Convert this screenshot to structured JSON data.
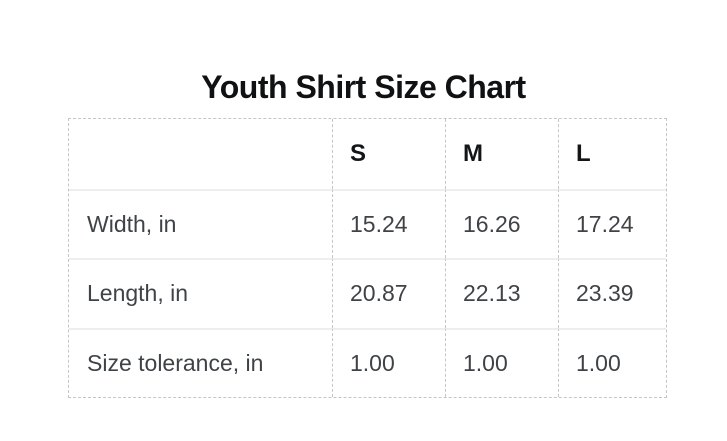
{
  "title": "Youth Shirt Size Chart",
  "table": {
    "corner": "",
    "columns": [
      "S",
      "M",
      "L"
    ],
    "rows": [
      {
        "label": "Width, in",
        "values": [
          "15.24",
          "16.26",
          "17.24"
        ]
      },
      {
        "label": "Length, in",
        "values": [
          "20.87",
          "22.13",
          "23.39"
        ]
      },
      {
        "label": "Size tolerance, in",
        "values": [
          "1.00",
          "1.00",
          "1.00"
        ]
      }
    ]
  },
  "chart_data": {
    "type": "table",
    "title": "Youth Shirt Size Chart",
    "columns": [
      "",
      "S",
      "M",
      "L"
    ],
    "rows": [
      [
        "Width, in",
        15.24,
        16.26,
        17.24
      ],
      [
        "Length, in",
        20.87,
        22.13,
        23.39
      ],
      [
        "Size tolerance, in",
        1.0,
        1.0,
        1.0
      ]
    ]
  },
  "colors": {
    "background": "#ffffff",
    "title_text": "#101112",
    "header_text": "#141516",
    "body_text": "#3f4347",
    "dashed_border": "#c6c6c6",
    "row_separator": "#eeeeee"
  }
}
